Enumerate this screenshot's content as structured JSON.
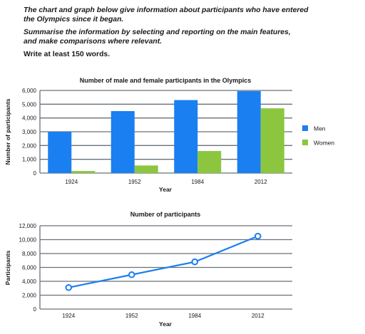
{
  "prompt": {
    "line1": "The chart and graph below give information about participants who have entered",
    "line2": "the Olympics since it began.",
    "line3": "Summarise the information by selecting and reporting on the main features,",
    "line4": "and make comparisons where relevant.",
    "line5": "Write at least 150 words."
  },
  "chart_data": [
    {
      "type": "bar",
      "title": "Number of male and female participants in the Olympics",
      "xlabel": "Year",
      "ylabel": "Number of participants",
      "categories": [
        "1924",
        "1952",
        "1984",
        "2012"
      ],
      "series": [
        {
          "name": "Men",
          "values": [
            3000,
            4500,
            5300,
            5950
          ],
          "color": "#1a7ff0"
        },
        {
          "name": "Women",
          "values": [
            150,
            550,
            1600,
            4700
          ],
          "color": "#8cc63f"
        }
      ],
      "ylim": [
        0,
        6000
      ],
      "yticks": [
        "0",
        "1,000",
        "2,000",
        "3,000",
        "4,000",
        "5,000",
        "6,000"
      ],
      "grid": true,
      "legend": "right"
    },
    {
      "type": "line",
      "title": "Number of participants",
      "xlabel": "Year",
      "ylabel": "Participants",
      "categories": [
        "1924",
        "1952",
        "1984",
        "2012"
      ],
      "series": [
        {
          "values": [
            3100,
            4950,
            6800,
            10500
          ],
          "color": "#1a7ff0"
        }
      ],
      "ylim": [
        0,
        12000
      ],
      "yticks": [
        "0",
        "2,000",
        "4,000",
        "6,000",
        "8,000",
        "10,000",
        "12,000"
      ],
      "grid": true
    }
  ]
}
